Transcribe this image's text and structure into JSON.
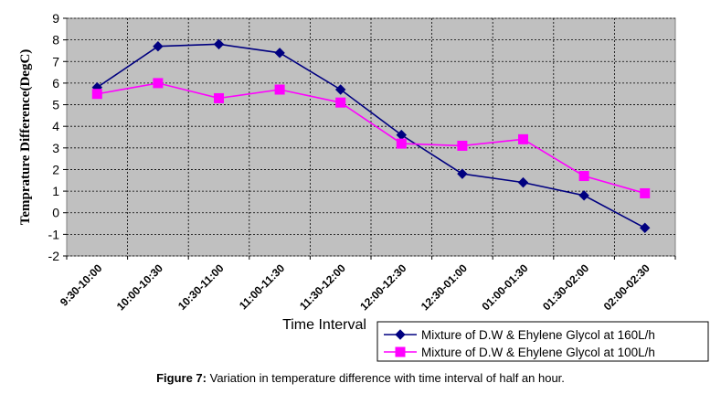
{
  "caption": {
    "label": "Figure 7:",
    "text": " Variation in temperature difference with time interval of half an hour."
  },
  "chart_data": {
    "type": "line",
    "xlabel": "Time Interval",
    "ylabel": "Temprature Difference(DegC)",
    "ylim": [
      -2,
      9
    ],
    "yticks": [
      -2,
      -1,
      0,
      1,
      2,
      3,
      4,
      5,
      6,
      7,
      8,
      9
    ],
    "grid": true,
    "legend_position": "bottom-right",
    "categories": [
      "9:30-10:00",
      "10:00-10:30",
      "10:30-11:00",
      "11:00-11:30",
      "11:30-12:00",
      "12:00-12:30",
      "12:30-01:00",
      "01:00-01:30",
      "01:30-02:00",
      "02:00-02:30"
    ],
    "series": [
      {
        "name": "Mixture of D.W & Ehylene Glycol at 160L/h",
        "color": "#000080",
        "marker": "diamond",
        "values": [
          5.8,
          7.7,
          7.8,
          7.4,
          5.7,
          3.6,
          1.8,
          1.4,
          0.8,
          -0.7
        ]
      },
      {
        "name": "Mixture of D.W & Ehylene Glycol at 100L/h",
        "color": "#ff00ff",
        "marker": "square",
        "values": [
          5.5,
          6.0,
          5.3,
          5.7,
          5.1,
          3.2,
          3.1,
          3.4,
          1.7,
          0.9
        ]
      }
    ]
  }
}
